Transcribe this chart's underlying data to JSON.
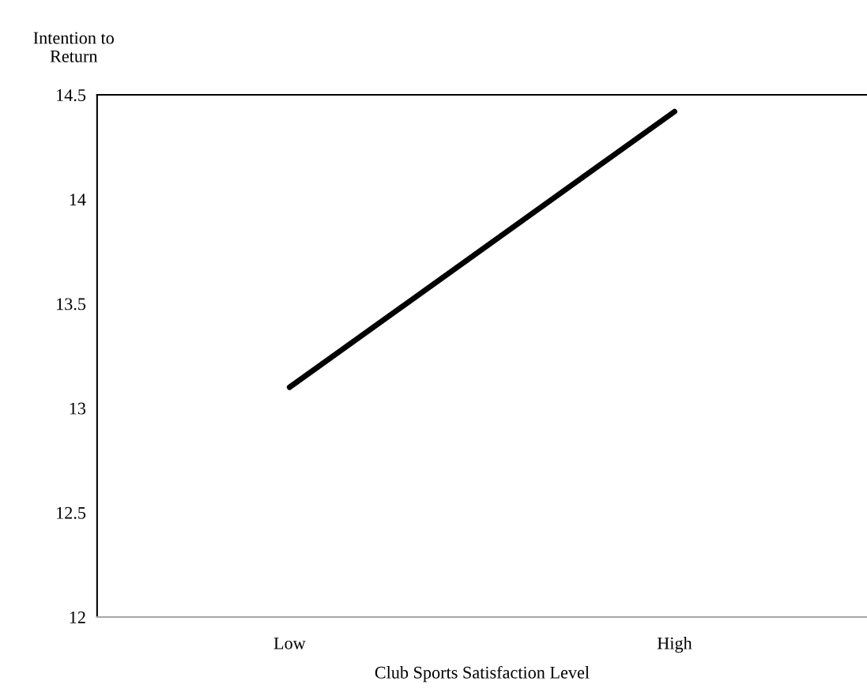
{
  "chart_data": {
    "type": "line",
    "xlabel": "Club Sports Satisfaction Level",
    "ylabel": "Intention to\nReturn",
    "categories": [
      "Low",
      "High"
    ],
    "series": [
      {
        "color": "#000000",
        "values": [
          13.1,
          14.42
        ]
      }
    ],
    "ylim": [
      12,
      14.5
    ],
    "yticks": [
      12,
      12.5,
      13,
      13.5,
      14,
      14.5
    ],
    "grid": false,
    "legend": false,
    "marker": "none",
    "line_style": "solid"
  }
}
